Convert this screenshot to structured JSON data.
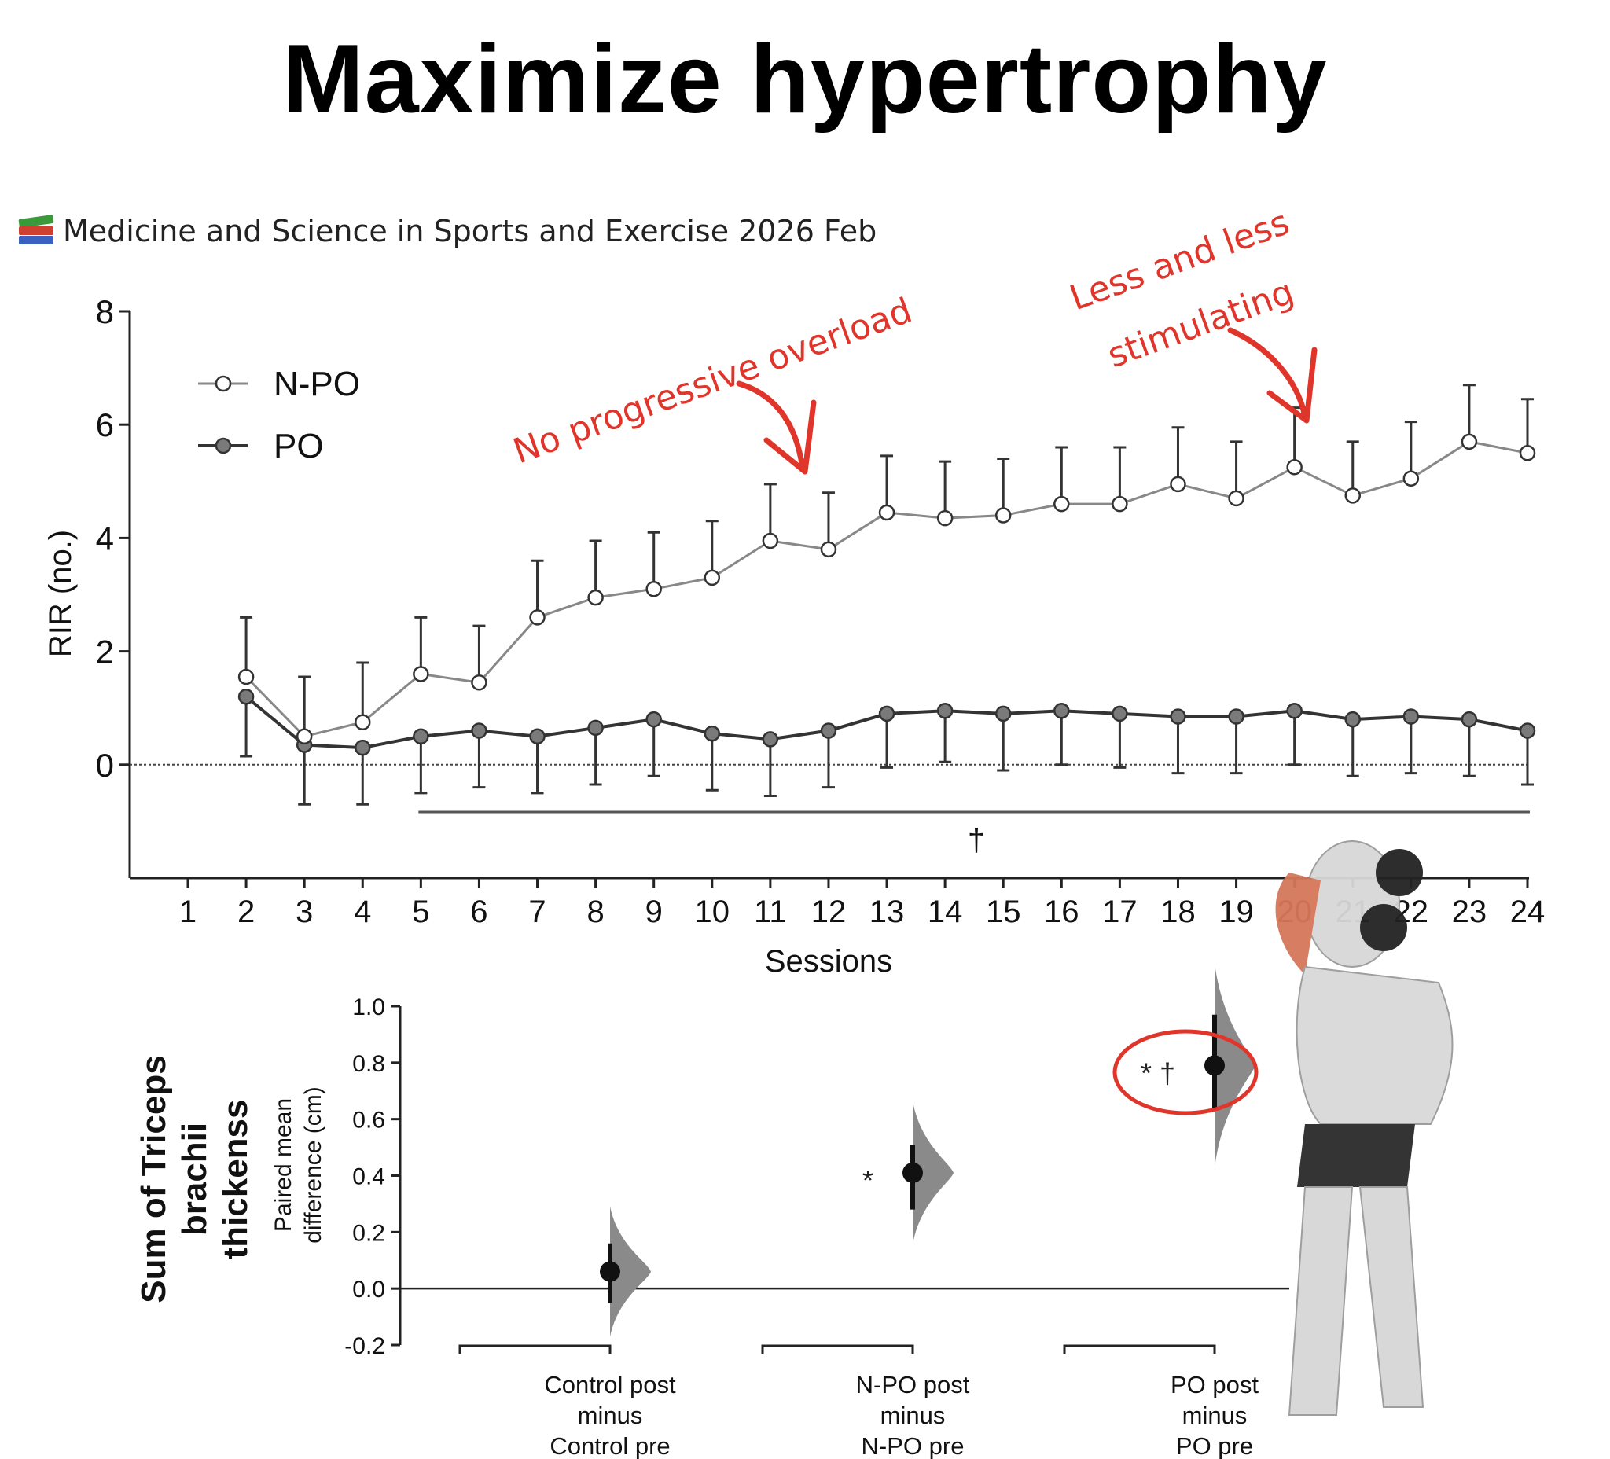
{
  "title": "Maximize hypertrophy",
  "citation": {
    "icon": "books-icon",
    "text": "Medicine and Science in Sports and Exercise 2026 Feb"
  },
  "colors": {
    "annotation": "#e0352b",
    "npo_fill": "#ffffff",
    "po_fill": "#7a7a7a",
    "line": "#333333"
  },
  "chart_data": [
    {
      "type": "line",
      "xlabel": "Sessions",
      "ylabel": "RIR (no.)",
      "ylim": [
        -2,
        8
      ],
      "yticks": [
        0,
        2,
        4,
        6,
        8
      ],
      "xticks": [
        1,
        2,
        3,
        4,
        5,
        6,
        7,
        8,
        9,
        10,
        11,
        12,
        13,
        14,
        15,
        16,
        17,
        18,
        19,
        20,
        21,
        22,
        23,
        24
      ],
      "x": [
        2,
        3,
        4,
        5,
        6,
        7,
        8,
        9,
        10,
        11,
        12,
        13,
        14,
        15,
        16,
        17,
        18,
        19,
        20,
        21,
        22,
        23,
        24
      ],
      "legend": {
        "placement": "top-left",
        "entries": [
          "N-PO",
          "PO"
        ]
      },
      "series": [
        {
          "name": "N-PO",
          "marker": "open-circle",
          "values": [
            1.55,
            0.5,
            0.75,
            1.6,
            1.45,
            2.6,
            2.95,
            3.1,
            3.3,
            3.95,
            3.8,
            4.45,
            4.35,
            4.4,
            4.6,
            4.6,
            4.95,
            4.7,
            5.25,
            4.75,
            5.05,
            5.7,
            5.5
          ],
          "error_upper": [
            2.6,
            1.55,
            1.8,
            2.6,
            2.45,
            3.6,
            3.95,
            4.1,
            4.3,
            4.95,
            4.8,
            5.45,
            5.35,
            5.4,
            5.6,
            5.6,
            5.95,
            5.7,
            6.3,
            5.7,
            6.05,
            6.7,
            6.45
          ]
        },
        {
          "name": "PO",
          "marker": "filled-circle",
          "values": [
            1.2,
            0.35,
            0.3,
            0.5,
            0.6,
            0.5,
            0.65,
            0.8,
            0.55,
            0.45,
            0.6,
            0.9,
            0.95,
            0.9,
            0.95,
            0.9,
            0.85,
            0.85,
            0.95,
            0.8,
            0.85,
            0.8,
            0.6
          ],
          "error_lower": [
            0.15,
            -0.7,
            -0.7,
            -0.5,
            -0.4,
            -0.5,
            -0.35,
            -0.2,
            -0.45,
            -0.55,
            -0.4,
            -0.05,
            0.05,
            -0.1,
            0,
            -0.05,
            -0.15,
            -0.15,
            0,
            -0.2,
            -0.15,
            -0.2,
            -0.35
          ]
        }
      ],
      "significance": {
        "symbol": "†",
        "from_session": 5,
        "to_session": 24
      },
      "annotations": [
        {
          "text": "No progressive overload",
          "points_to_session": 12
        },
        {
          "text_line1": "Less and less",
          "text_line2": "stimulating",
          "points_to_session": 20
        }
      ]
    },
    {
      "type": "scatter",
      "title": "Sum of Triceps brachii thickenss",
      "title_lines": [
        "Sum of Triceps",
        "brachii",
        "thickenss"
      ],
      "ylabel_lines": [
        "Paired mean",
        "difference (cm)"
      ],
      "ylim": [
        -0.2,
        1.0
      ],
      "yticks": [
        "1.0",
        "0.8",
        "0.6",
        "0.4",
        "0.2",
        "0.0",
        "-0.2"
      ],
      "categories": [
        {
          "lines": [
            "Control post",
            "minus",
            "Control pre"
          ],
          "mean": 0.06,
          "ci": [
            -0.05,
            0.16
          ],
          "mark": ""
        },
        {
          "lines": [
            "N-PO post",
            "minus",
            "N-PO pre"
          ],
          "mean": 0.41,
          "ci": [
            0.28,
            0.51
          ],
          "mark": "*"
        },
        {
          "lines": [
            "PO post",
            "minus",
            "PO pre"
          ],
          "mean": 0.79,
          "ci": [
            0.64,
            0.97
          ],
          "mark": "* †"
        }
      ]
    }
  ]
}
